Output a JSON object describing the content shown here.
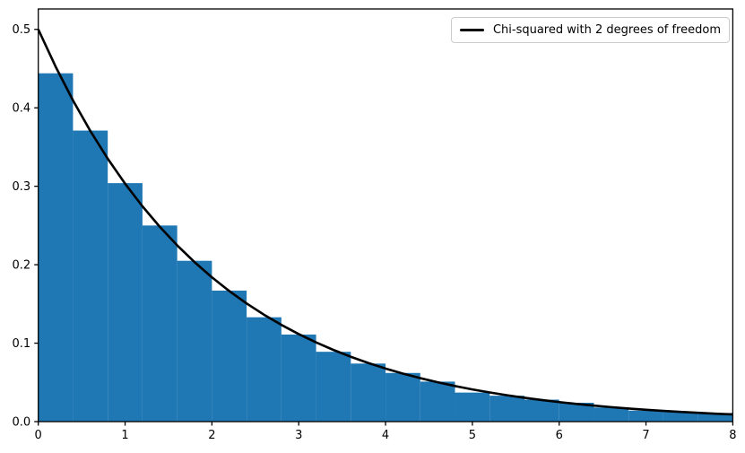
{
  "chart_data": {
    "type": "bar",
    "subtype": "density-histogram-with-overlay-curve",
    "background_color": "#ffffff",
    "histogram": {
      "color": "#1f77b4",
      "bin_edges": [
        0.0,
        0.4,
        0.8,
        1.2,
        1.6,
        2.0,
        2.4,
        2.8,
        3.2,
        3.6,
        4.0,
        4.4,
        4.8,
        5.2,
        5.6,
        6.0,
        6.4,
        6.8,
        7.2,
        7.6,
        8.0
      ],
      "densities": [
        0.444,
        0.371,
        0.304,
        0.25,
        0.205,
        0.167,
        0.133,
        0.111,
        0.089,
        0.074,
        0.062,
        0.051,
        0.037,
        0.033,
        0.028,
        0.024,
        0.018,
        0.014,
        0.012,
        0.011
      ]
    },
    "curve": {
      "name": "Chi-squared with 2 degrees of freedom",
      "color": "#000000",
      "line_width": 2.6,
      "x": [
        0.0,
        0.2,
        0.4,
        0.6,
        0.8,
        1.0,
        1.2,
        1.4,
        1.6,
        1.8,
        2.0,
        2.2,
        2.4,
        2.6,
        2.8,
        3.0,
        3.2,
        3.4,
        3.6,
        3.8,
        4.0,
        4.2,
        4.4,
        4.6,
        4.8,
        5.0,
        5.2,
        5.4,
        5.6,
        5.8,
        6.0,
        6.2,
        6.4,
        6.6,
        6.8,
        7.0,
        7.2,
        7.4,
        7.6,
        7.8,
        8.0
      ],
      "y": [
        0.5,
        0.45242,
        0.40937,
        0.37041,
        0.33516,
        0.30327,
        0.27441,
        0.24829,
        0.22466,
        0.20328,
        0.18394,
        0.16644,
        0.1506,
        0.13627,
        0.1233,
        0.11157,
        0.10095,
        0.09134,
        0.08265,
        0.07478,
        0.06767,
        0.06123,
        0.0554,
        0.05013,
        0.04536,
        0.04104,
        0.03714,
        0.0336,
        0.03041,
        0.02751,
        0.02489,
        0.02252,
        0.02038,
        0.01844,
        0.01669,
        0.0151,
        0.01366,
        0.01236,
        0.01119,
        0.01012,
        0.00916
      ]
    },
    "axes": {
      "xlim": [
        0,
        8
      ],
      "ylim": [
        0,
        0.526
      ],
      "xticks": [
        0,
        1,
        2,
        3,
        4,
        5,
        6,
        7,
        8
      ],
      "xtick_labels": [
        "0",
        "1",
        "2",
        "3",
        "4",
        "5",
        "6",
        "7",
        "8"
      ],
      "yticks": [
        0.0,
        0.1,
        0.2,
        0.3,
        0.4,
        0.5
      ],
      "ytick_labels": [
        "0.0",
        "0.1",
        "0.2",
        "0.3",
        "0.4",
        "0.5"
      ],
      "grid": false,
      "spine_color": "#000000"
    },
    "legend": {
      "position": "upper right",
      "entries": [
        {
          "label": "Chi-squared with 2 degrees of freedom",
          "color": "#000000",
          "style": "line"
        }
      ]
    }
  }
}
